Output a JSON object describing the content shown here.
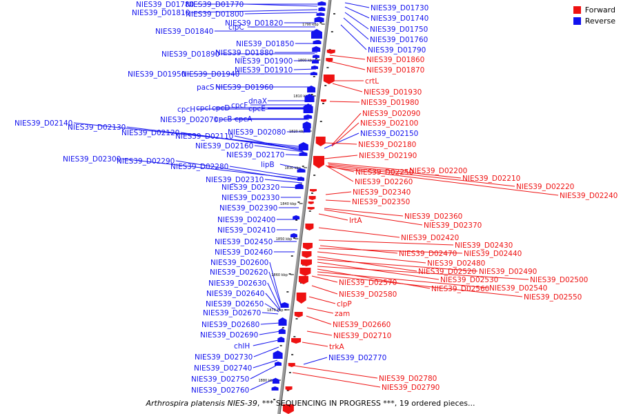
{
  "legend": {
    "items": [
      {
        "label": "Forward",
        "color": "#ee1111"
      },
      {
        "label": "Reverse",
        "color": "#1111ee"
      }
    ]
  },
  "caption": {
    "organism": "Arthrospira platensis NIES-39",
    "status": ", *** SEQUENCING IN PROGRESS ***, 19 ordered pieces..."
  },
  "scale_ticks": [
    "1790 kbp",
    "1800 kbp",
    "1810 kbp",
    "1820 kbp",
    "1830 kbp",
    "1840 kbp",
    "1850 kbp",
    "1860 kbp",
    "1870 kbp",
    "1880 kbp"
  ],
  "reverse_genes": [
    "NIES39_D01780",
    "NIES39_D01770",
    "NIES39_D01810",
    "NIES39_D01800",
    "NIES39_D01820",
    "clpC",
    "NIES39_D01840",
    "NIES39_D01850",
    "NIES39_D01890",
    "NIES39_D01880",
    "NIES39_D01900",
    "NIES39_D01910",
    "NIES39_D01950",
    "NIES39_D01940",
    "pacS",
    "NIES39_D01960",
    "dnaX",
    "cpcF",
    "cpcH",
    "cpcI",
    "cpcD",
    "cpcE",
    "NIES39_D02070",
    "cpcB",
    "cpcA",
    "NIES39_D02140",
    "NIES39_D02130",
    "NIES39_D02120",
    "NIES39_D02110",
    "NIES39_D02080",
    "NIES39_D02160",
    "NIES39_D02170",
    "NIES39_D02300",
    "NIES39_D02290",
    "lipB",
    "NIES39_D02280",
    "NIES39_D02310",
    "NIES39_D02320",
    "NIES39_D02330",
    "NIES39_D02390",
    "NIES39_D02400",
    "NIES39_D02410",
    "NIES39_D02450",
    "NIES39_D02460",
    "NIES39_D02600",
    "NIES39_D02620",
    "NIES39_D02630",
    "NIES39_D02640",
    "NIES39_D02650",
    "NIES39_D02670",
    "NIES39_D02680",
    "NIES39_D02690",
    "chlH",
    "NIES39_D02730",
    "NIES39_D02740",
    "NIES39_D02750",
    "NIES39_D02760",
    "NIES39_D01730",
    "NIES39_D01740",
    "NIES39_D01750",
    "NIES39_D01760",
    "NIES39_D01790",
    "NIES39_D02150",
    "NIES39_D02770"
  ],
  "forward_genes": [
    "NIES39_D01860",
    "NIES39_D01870",
    "crtL",
    "NIES39_D01930",
    "NIES39_D01980",
    "NIES39_D02090",
    "NIES39_D02100",
    "NIES39_D02180",
    "NIES39_D02190",
    "NIES39_D02250",
    "NIES39_D02200",
    "NIES39_D02210",
    "NIES39_D02220",
    "NIES39_D02240",
    "NIES39_D02260",
    "NIES39_D02340",
    "NIES39_D02350",
    "NIES39_D02360",
    "lrtA",
    "NIES39_D02370",
    "NIES39_D02420",
    "NIES39_D02430",
    "NIES39_D02470",
    "NIES39_D02440",
    "NIES39_D02480",
    "NIES39_D02520",
    "NIES39_D02490",
    "NIES39_D02530",
    "NIES39_D02500",
    "NIES39_D02570",
    "NIES39_D02560",
    "NIES39_D02540",
    "NIES39_D02580",
    "NIES39_D02550",
    "clpP",
    "zam",
    "NIES39_D02660",
    "NIES39_D02710",
    "trkA",
    "NIES39_D02780",
    "NIES39_D02790"
  ]
}
